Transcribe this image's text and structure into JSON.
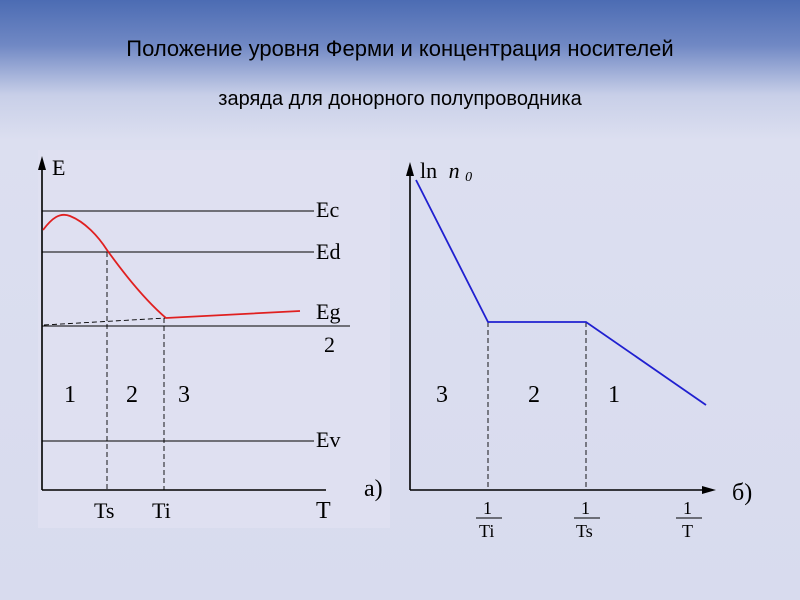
{
  "title": {
    "line1": "Положение уровня Ферми и концентрация носителей",
    "line2": "заряда для донорного полупроводника"
  },
  "colors": {
    "fermi_curve": "#e02020",
    "ln_curve": "#2020d0",
    "axis": "#000000"
  },
  "diagram_a": {
    "y_axis_label": "E",
    "x_axis_label": "T",
    "level_ec": "Ec",
    "level_ed": "Ed",
    "level_eg_num": "Eg",
    "level_eg_den": "2",
    "level_ev": "Ev",
    "tick_ts": "Ts",
    "tick_ti": "Ti",
    "region_1": "1",
    "region_2": "2",
    "region_3": "3",
    "caption": "а)"
  },
  "diagram_b": {
    "y_axis_label_ln": "ln",
    "y_axis_label_n": "n",
    "y_axis_label_sub": "0",
    "tick_1_num": "1",
    "tick_1_den": "Ti",
    "tick_2_num": "1",
    "tick_2_den": "Ts",
    "tick_3_num": "1",
    "tick_3_den": "T",
    "region_3": "3",
    "region_2": "2",
    "region_1": "1",
    "caption": "б)"
  }
}
